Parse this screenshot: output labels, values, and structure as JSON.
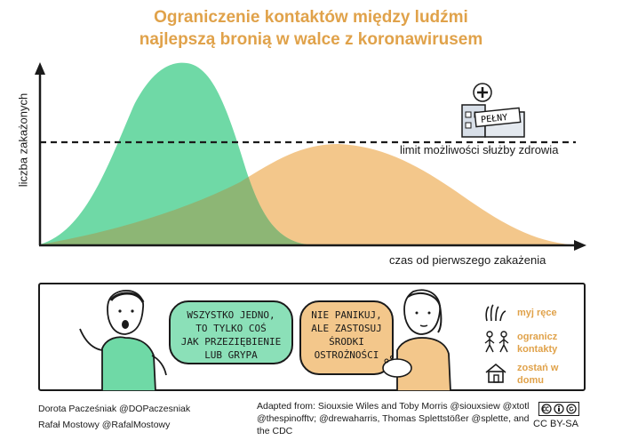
{
  "title_line1": "Ograniczenie kontaktów między ludźmi",
  "title_line2": "najlepszą bronią w walce z koronawirusem",
  "chart": {
    "ylabel": "liczba zakażonych",
    "xlabel": "czas od pierwszego zakażenia",
    "limit_label": "limit możliwości służby zdrowia",
    "hospital_sign": "PEŁNY",
    "colors": {
      "green": "#6fd9a6",
      "orange": "#f3c78b",
      "overlap": "#8db675",
      "accent": "#e0a24a"
    }
  },
  "bubble_left": [
    "WSZYSTKO JEDNO,",
    "TO TYLKO COŚ",
    "JAK PRZEZIĘBIENIE",
    "LUB GRYPA"
  ],
  "bubble_right": [
    "NIE PANIKUJ,",
    "ALE ZASTOSUJ",
    "ŚRODKI",
    "OSTROŻNOŚCI"
  ],
  "tips": [
    {
      "icon": "hands-icon",
      "label": "myj ręce"
    },
    {
      "icon": "people-icon",
      "label": "ogranicz kontakty"
    },
    {
      "icon": "house-icon",
      "label": "zostań w domu"
    }
  ],
  "footer": {
    "author1": "Dorota Pacześniak @DOPaczesniak",
    "author2": "Rafał Mostowy @RafalMostowy",
    "credit_line1": "Adapted from: Siouxsie Wiles and Toby Morris @siouxsiew @xtotl",
    "credit_line2": "@thespinofftv; @drewaharris, Thomas Splettstößer @splette, and",
    "credit_line3": "the CDC",
    "license": "CC BY-SA"
  }
}
